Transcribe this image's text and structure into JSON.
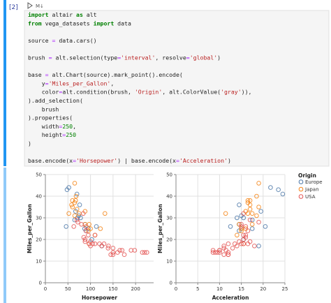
{
  "cell": {
    "prompt": "[2]",
    "run_label": "M↓",
    "code_blocks": [
      [
        "import altair as alt",
        "from vega_datasets import data"
      ],
      [
        "source = data.cars()"
      ],
      [
        "brush = alt.selection(type='interval', resolve='global')"
      ],
      [
        "base = alt.Chart(source).mark_point().encode(",
        "    y='Miles_per_Gallon',",
        "    color=alt.condition(brush, 'Origin', alt.ColorValue('gray')),",
        ").add_selection(",
        "    brush",
        ").properties(",
        "    width=250,",
        "    height=250",
        ")"
      ],
      [
        "base.encode(x='Horsepower') | base.encode(x='Acceleration')"
      ]
    ]
  },
  "legend": {
    "title": "Origin"
  },
  "chart_data": [
    {
      "type": "scatter",
      "x_label": "Horsepower",
      "y_label": "Miles_per_Gallon",
      "xlim": [
        0,
        240
      ],
      "xticks": [
        0,
        50,
        100,
        150,
        200
      ],
      "ylim": [
        0,
        50
      ],
      "yticks": [
        0,
        10,
        20,
        30,
        40,
        50
      ],
      "grid": true,
      "series": [
        {
          "name": "Europe",
          "color": "#4c78a8",
          "x": [
            46,
            87,
            90,
            95,
            113,
            88,
            67,
            52,
            48,
            71,
            78,
            76,
            70,
            103,
            125,
            65,
            74
          ],
          "y": [
            26,
            25,
            24,
            25,
            26,
            27,
            33,
            44,
            43,
            30,
            30,
            36,
            41,
            20,
            17,
            29,
            31
          ]
        },
        {
          "name": "Japan",
          "color": "#f58518",
          "x": [
            95,
            88,
            97,
            65,
            60,
            65,
            68,
            67,
            75,
            97,
            110,
            132,
            88,
            70,
            52,
            100,
            122,
            60,
            65,
            58
          ],
          "y": [
            24,
            27,
            18,
            31,
            35,
            37,
            40,
            38,
            32,
            27,
            22,
            32,
            33,
            34,
            32,
            25,
            25,
            38,
            46,
            36
          ]
        },
        {
          "name": "USA",
          "color": "#e45756",
          "x": [
            130,
            165,
            150,
            140,
            198,
            220,
            215,
            225,
            190,
            170,
            160,
            150,
            95,
            97,
            85,
            88,
            100,
            105,
            110,
            72,
            90,
            100,
            88,
            145,
            175,
            150,
            110,
            63,
            70,
            84,
            90,
            120,
            125,
            139,
            80
          ],
          "y": [
            18,
            15,
            16,
            17,
            15,
            14,
            14,
            14,
            15,
            15,
            14,
            14,
            22,
            18,
            21,
            20,
            19,
            18,
            18,
            28,
            24,
            17,
            19,
            13,
            13,
            13,
            22,
            26,
            29,
            32,
            26,
            18,
            17,
            16,
            27
          ]
        }
      ]
    },
    {
      "type": "scatter",
      "x_label": "Acceleration",
      "y_label": "Miles_per_Gallon",
      "xlim": [
        0,
        25
      ],
      "xticks": [
        0,
        5,
        10,
        15,
        20,
        25
      ],
      "ylim": [
        0,
        50
      ],
      "yticks": [
        0,
        10,
        20,
        30,
        40,
        50
      ],
      "grid": true,
      "series": [
        {
          "name": "Europe",
          "color": "#4c78a8",
          "x": [
            20.5,
            15,
            14.5,
            17.5,
            12.5,
            14.5,
            19.5,
            21.7,
            23.5,
            14,
            15.5,
            14.5,
            24.5,
            15.5,
            19,
            17.5,
            15
          ],
          "y": [
            26,
            25,
            24,
            25,
            26,
            27,
            33,
            44,
            43,
            30,
            30,
            36,
            41,
            20,
            17,
            29,
            31
          ]
        },
        {
          "name": "Japan",
          "color": "#f58518",
          "x": [
            15,
            14.5,
            15.5,
            18.5,
            19,
            16.5,
            18.5,
            17,
            16.5,
            17.5,
            14,
            11.4,
            16,
            17,
            17.5,
            16,
            15,
            16.5,
            19,
            17
          ],
          "y": [
            24,
            27,
            18,
            31,
            35,
            37,
            40,
            38,
            32,
            27,
            22,
            32,
            33,
            34,
            32,
            25,
            25,
            38,
            46,
            36
          ]
        },
        {
          "name": "USA",
          "color": "#e45756",
          "x": [
            12,
            11.5,
            11,
            11,
            10,
            9,
            8.5,
            10,
            8.5,
            10,
            9.5,
            12,
            15.5,
            15.5,
            16,
            15.5,
            17,
            16.5,
            15,
            19,
            16.5,
            18,
            14.5,
            12,
            11,
            12,
            16,
            15,
            17,
            15.5,
            16,
            13.5,
            14,
            13,
            15
          ],
          "y": [
            18,
            15,
            16,
            17,
            15,
            14,
            14,
            14,
            15,
            15,
            14,
            14,
            22,
            18,
            21,
            20,
            19,
            18,
            18,
            28,
            24,
            17,
            19,
            13,
            13,
            13,
            22,
            26,
            29,
            32,
            26,
            18,
            17,
            16,
            27
          ]
        }
      ]
    }
  ]
}
